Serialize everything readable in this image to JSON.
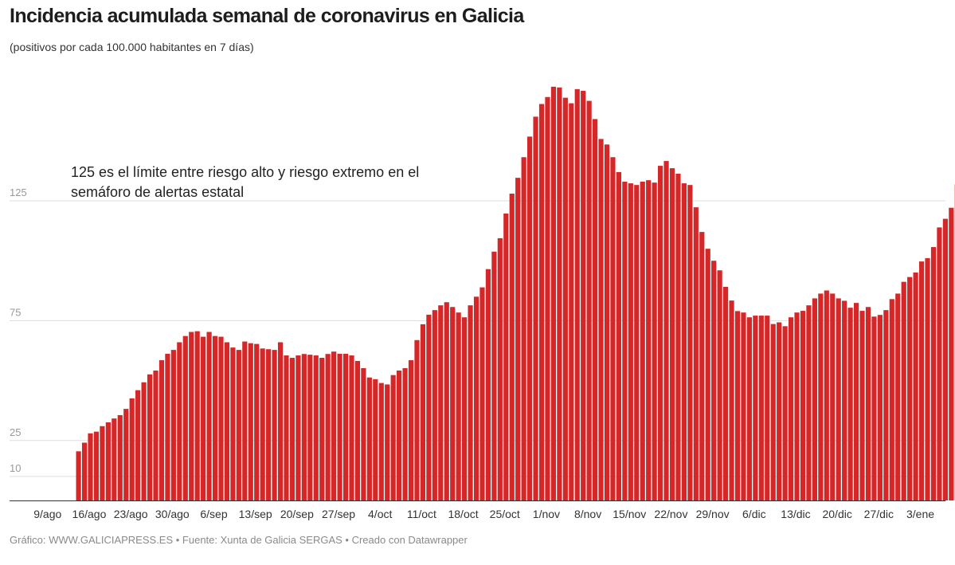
{
  "title": "Incidencia acumulada semanal de coronavirus en Galicia",
  "subtitle": "(positivos por cada 100.000 habitantes en 7 días)",
  "annotation": [
    "125 es el límite entre riesgo alto y riesgo extremo en el",
    "semáforo de alertas estatal"
  ],
  "footer": {
    "prefix": "Gráfico: ",
    "link": "WWW.GALICIAPRESS.ES",
    "source": " • Fuente: Xunta de Galicia SERGAS • Creado con Datawrapper"
  },
  "colors": {
    "bar": "#d62728",
    "grid": "#dddddd",
    "axis": "#333333",
    "tick_text": "#999999"
  },
  "chart_data": {
    "type": "bar",
    "title": "Incidencia acumulada semanal de coronavirus en Galicia",
    "subtitle": "(positivos por cada 100.000 habitantes en 7 días)",
    "ylim": [
      0,
      175
    ],
    "y_ticks": [
      10,
      25,
      75,
      125
    ],
    "grid": true,
    "x_start": "2020-08-04",
    "x_end": "2021-01-09",
    "x_tick_labels": [
      {
        "date": "2020-08-09",
        "label": "9/ago"
      },
      {
        "date": "2020-08-16",
        "label": "16/ago"
      },
      {
        "date": "2020-08-23",
        "label": "23/ago"
      },
      {
        "date": "2020-08-30",
        "label": "30/ago"
      },
      {
        "date": "2020-09-06",
        "label": "6/sep"
      },
      {
        "date": "2020-09-13",
        "label": "13/sep"
      },
      {
        "date": "2020-09-20",
        "label": "20/sep"
      },
      {
        "date": "2020-09-27",
        "label": "27/sep"
      },
      {
        "date": "2020-10-04",
        "label": "4/oct"
      },
      {
        "date": "2020-10-11",
        "label": "11/oct"
      },
      {
        "date": "2020-10-18",
        "label": "18/oct"
      },
      {
        "date": "2020-10-25",
        "label": "25/oct"
      },
      {
        "date": "2020-11-01",
        "label": "1/nov"
      },
      {
        "date": "2020-11-08",
        "label": "8/nov"
      },
      {
        "date": "2020-11-15",
        "label": "15/nov"
      },
      {
        "date": "2020-11-22",
        "label": "22/nov"
      },
      {
        "date": "2020-11-29",
        "label": "29/nov"
      },
      {
        "date": "2020-12-06",
        "label": "6/dic"
      },
      {
        "date": "2020-12-13",
        "label": "13/dic"
      },
      {
        "date": "2020-12-20",
        "label": "20/dic"
      },
      {
        "date": "2020-12-27",
        "label": "27/dic"
      },
      {
        "date": "2021-01-03",
        "label": "3/ene"
      }
    ],
    "first_bar_date": "2020-08-13",
    "values": [
      20.5,
      24.1,
      28,
      28.7,
      31,
      32.6,
      34.2,
      35.6,
      38.2,
      42.6,
      46,
      49.3,
      52.6,
      54.2,
      58.5,
      61.2,
      62.8,
      66,
      68.6,
      70.3,
      70.6,
      68.3,
      70.3,
      68.6,
      68.3,
      66,
      63.8,
      62.8,
      66.3,
      65.6,
      65.3,
      63.4,
      63.1,
      62.8,
      66,
      60.5,
      59.5,
      60.5,
      61.1,
      60.8,
      60.5,
      59.5,
      61.1,
      62.1,
      61.2,
      61.2,
      60.5,
      58.2,
      55.2,
      51.3,
      50.6,
      49,
      48.4,
      52.3,
      54.2,
      55.2,
      58.5,
      66.9,
      73.5,
      77.5,
      79.4,
      81.4,
      82.7,
      80.7,
      78.4,
      76.4,
      81.4,
      85,
      88.9,
      96.5,
      103.8,
      109.4,
      119.7,
      128,
      134.6,
      143.2,
      151.8,
      160.1,
      165.4,
      168.3,
      172.6,
      172.3,
      168,
      165.7,
      171.6,
      170.9,
      166.7,
      159.1,
      150.8,
      148.5,
      143.2,
      137,
      133,
      132.3,
      131.6,
      133,
      133.6,
      132.6,
      139.6,
      141.6,
      138.6,
      136.3,
      132.3,
      131.6,
      122.3,
      112,
      105,
      100,
      96,
      89.1,
      83.4,
      79,
      78.4,
      76.4,
      77.1,
      77.1,
      77.1,
      73.6,
      74.3,
      72.7,
      76.4,
      78.4,
      79.1,
      81.4,
      84.3,
      86.3,
      87.6,
      86.3,
      84.3,
      83.3,
      80.4,
      82.4,
      79.1,
      80.7,
      76.7,
      77.4,
      79.4,
      84,
      86.3,
      91.2,
      93.2,
      95.1,
      99.7,
      101.1,
      105.7,
      113.9,
      117.5,
      122.1,
      131.9,
      146.8
    ]
  }
}
